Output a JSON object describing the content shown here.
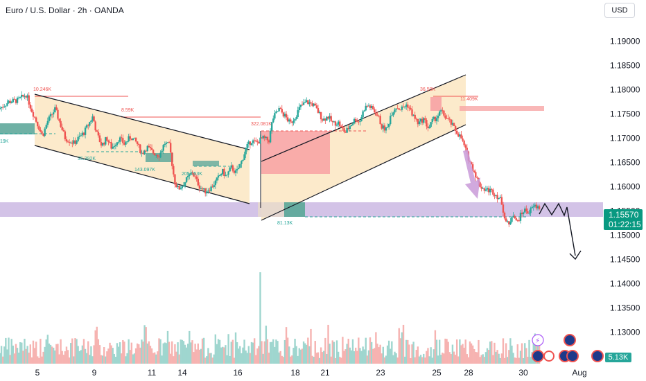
{
  "header": {
    "title": "Euro / U.S. Dollar · 2h · OANDA",
    "currency_button": "USD"
  },
  "price_label": {
    "price": "1.15570",
    "countdown": "01:22:15"
  },
  "volume_label": "5.13K",
  "colors": {
    "up": "#26a69a",
    "down": "#ef5350",
    "zone": "#cbb8e3",
    "channel": "#fbe6c2",
    "supply": "#f8a5a5",
    "demand": "#5fa99b",
    "price_box": "#089981"
  },
  "chart_data": {
    "type": "candlestick",
    "title": "Euro / U.S. Dollar · 2h · OANDA",
    "ylim": [
      1.1235,
      1.1985
    ],
    "price_ticks": [
      "1.19000",
      "1.18500",
      "1.18000",
      "1.17500",
      "1.17000",
      "1.16500",
      "1.16000",
      "1.15500",
      "1.15000",
      "1.14500",
      "1.14000",
      "1.13500",
      "1.13000"
    ],
    "date_ticks": [
      {
        "label": "5",
        "x": 5
      },
      {
        "label": "9",
        "x": 9
      },
      {
        "label": "11",
        "x": 11
      },
      {
        "label": "14",
        "x": 14
      },
      {
        "label": "16",
        "x": 16
      },
      {
        "label": "18",
        "x": 18
      },
      {
        "label": "21",
        "x": 21
      },
      {
        "label": "23",
        "x": 23
      },
      {
        "label": "25",
        "x": 25
      },
      {
        "label": "28",
        "x": 28
      },
      {
        "label": "30",
        "x": 30
      },
      {
        "label": "Aug",
        "x": 32
      }
    ],
    "path_points": [
      [
        3.0,
        1.176
      ],
      [
        3.8,
        1.1775
      ],
      [
        4.5,
        1.1778
      ],
      [
        5.2,
        1.179
      ],
      [
        5.6,
        1.176
      ],
      [
        6.0,
        1.1735
      ],
      [
        6.5,
        1.1705
      ],
      [
        6.9,
        1.1735
      ],
      [
        7.5,
        1.176
      ],
      [
        7.9,
        1.173
      ],
      [
        8.3,
        1.17
      ],
      [
        9.0,
        1.169
      ],
      [
        9.8,
        1.1712
      ],
      [
        10.5,
        1.1745
      ],
      [
        10.8,
        1.171
      ],
      [
        11.2,
        1.1685
      ],
      [
        11.6,
        1.17
      ],
      [
        12.0,
        1.168
      ],
      [
        12.6,
        1.17
      ],
      [
        13.0,
        1.1688
      ],
      [
        13.5,
        1.1703
      ],
      [
        14.0,
        1.169
      ],
      [
        14.4,
        1.1668
      ],
      [
        14.8,
        1.1682
      ],
      [
        15.3,
        1.167
      ],
      [
        15.8,
        1.1665
      ],
      [
        16.2,
        1.169
      ],
      [
        16.6,
        1.1684
      ],
      [
        17.0,
        1.161
      ],
      [
        17.3,
        1.1595
      ],
      [
        17.7,
        1.1605
      ],
      [
        18.1,
        1.162
      ],
      [
        18.4,
        1.163
      ],
      [
        18.7,
        1.1615
      ],
      [
        19.0,
        1.16
      ],
      [
        19.4,
        1.159
      ],
      [
        19.9,
        1.1598
      ],
      [
        20.4,
        1.1615
      ],
      [
        20.8,
        1.1632
      ],
      [
        21.1,
        1.162
      ],
      [
        21.5,
        1.164
      ],
      [
        21.9,
        1.1628
      ],
      [
        22.3,
        1.165
      ],
      [
        22.7,
        1.168
      ],
      [
        23.1,
        1.1695
      ],
      [
        23.5,
        1.169
      ],
      [
        24.0,
        1.17
      ],
      [
        24.5,
        1.1695
      ],
      [
        24.8,
        1.174
      ],
      [
        25.3,
        1.176
      ],
      [
        25.8,
        1.1745
      ],
      [
        26.2,
        1.173
      ],
      [
        26.6,
        1.1745
      ],
      [
        27.0,
        1.1765
      ],
      [
        27.5,
        1.1775
      ],
      [
        28.0,
        1.177
      ],
      [
        28.4,
        1.1755
      ],
      [
        28.8,
        1.1738
      ],
      [
        29.2,
        1.1745
      ],
      [
        29.6,
        1.173
      ],
      [
        30.0,
        1.1733
      ],
      [
        30.3,
        1.172
      ],
      [
        30.6,
        1.1712
      ],
      [
        31.0,
        1.1728
      ],
      [
        31.4,
        1.174
      ],
      [
        31.7,
        1.1733
      ],
      [
        32.1,
        1.1762
      ],
      [
        32.4,
        1.1768
      ],
      [
        32.8,
        1.1758
      ],
      [
        33.2,
        1.1745
      ],
      [
        33.5,
        1.1722
      ],
      [
        33.9,
        1.1718
      ],
      [
        34.2,
        1.175
      ],
      [
        34.6,
        1.1765
      ],
      [
        35.0,
        1.176
      ],
      [
        35.5,
        1.177
      ],
      [
        36.0,
        1.1745
      ],
      [
        36.4,
        1.173
      ],
      [
        36.8,
        1.174
      ],
      [
        37.2,
        1.172
      ],
      [
        37.5,
        1.1735
      ],
      [
        37.9,
        1.1745
      ],
      [
        38.2,
        1.1755
      ],
      [
        38.6,
        1.1742
      ],
      [
        39.0,
        1.173
      ],
      [
        39.3,
        1.1718
      ],
      [
        39.8,
        1.17
      ],
      [
        40.2,
        1.1672
      ],
      [
        40.5,
        1.165
      ],
      [
        40.9,
        1.1628
      ],
      [
        41.2,
        1.1605
      ],
      [
        41.6,
        1.1595
      ],
      [
        42.0,
        1.1593
      ],
      [
        42.3,
        1.159
      ],
      [
        42.7,
        1.158
      ],
      [
        43.0,
        1.157
      ],
      [
        43.3,
        1.153
      ],
      [
        43.6,
        1.152
      ],
      [
        43.9,
        1.1548
      ],
      [
        44.2,
        1.1525
      ],
      [
        44.5,
        1.154
      ],
      [
        44.8,
        1.1552
      ],
      [
        45.2,
        1.1548
      ],
      [
        45.6,
        1.156
      ],
      [
        46.0,
        1.1557
      ]
    ],
    "annotations": [
      {
        "text": "10.246K",
        "color": "#ef5350"
      },
      {
        "text": "8.59K",
        "color": "#ef5350"
      },
      {
        "text": "322.081K",
        "color": "#ef5350"
      },
      {
        "text": "36.50K",
        "color": "#ef5350"
      },
      {
        "text": "11.409K",
        "color": "#ef5350"
      },
      {
        "text": "19K",
        "color": "#26a69a"
      },
      {
        "text": "35.392K",
        "color": "#26a69a"
      },
      {
        "text": "143.097K",
        "color": "#26a69a"
      },
      {
        "text": "205.053K",
        "color": "#26a69a"
      },
      {
        "text": "81.13K",
        "color": "#26a69a"
      }
    ]
  }
}
